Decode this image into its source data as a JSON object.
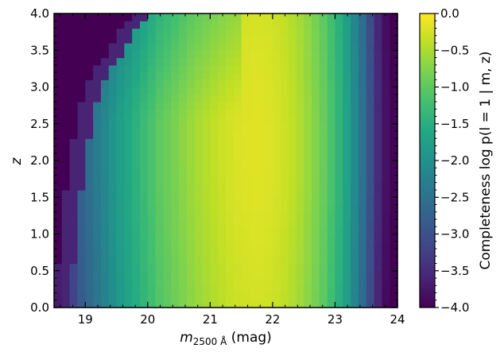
{
  "chart_data": {
    "type": "heatmap",
    "xlabel": "m",
    "xlabel_sub": "2500 Å",
    "xlabel_suffix": " (mag)",
    "ylabel": "z",
    "xlim": [
      18.5,
      24.0
    ],
    "ylim": [
      0.0,
      4.0
    ],
    "x_ticks": [
      19,
      20,
      21,
      22,
      23,
      24
    ],
    "y_ticks": [
      0.0,
      0.5,
      1.0,
      1.5,
      2.0,
      2.5,
      3.0,
      3.5,
      4.0
    ],
    "x_bin_width": 0.125,
    "y_bin_width": 0.1,
    "colormap": "viridis",
    "colorbar": {
      "label": "Completeness log p(l = 1 | m, z)",
      "range": [
        -4.0,
        0.0
      ],
      "ticks": [
        0.0,
        -0.5,
        -1.0,
        -1.5,
        -2.0,
        -2.5,
        -3.0,
        -3.5,
        -4.0
      ]
    },
    "value_profile": {
      "m_columns": [
        18.5625,
        18.6875,
        18.8125,
        18.9375,
        19.0625,
        19.1875,
        19.3125,
        19.4375,
        19.5625,
        19.6875,
        19.8125,
        19.9375,
        20.0625,
        20.1875,
        20.3125,
        20.4375,
        20.5625,
        20.6875,
        20.8125,
        20.9375,
        21.0625,
        21.1875,
        21.3125,
        21.4375,
        21.5625,
        21.6875,
        21.8125,
        21.9375,
        22.0625,
        22.1875,
        22.3125,
        22.4375,
        22.5625,
        22.6875,
        22.8125,
        22.9375,
        23.0625,
        23.1875,
        23.3125,
        23.4375,
        23.5625,
        23.6875,
        23.8125,
        23.9375
      ],
      "log_completeness_at_z_2": [
        -3.6,
        -3.4,
        -3.1,
        -2.75,
        -2.55,
        -2.35,
        -2.15,
        -1.95,
        -1.75,
        -1.6,
        -1.45,
        -1.3,
        -1.15,
        -1.0,
        -0.9,
        -0.8,
        -0.7,
        -0.6,
        -0.52,
        -0.45,
        -0.38,
        -0.32,
        -0.26,
        -0.22,
        -0.2,
        -0.18,
        -0.18,
        -0.2,
        -0.24,
        -0.3,
        -0.38,
        -0.48,
        -0.6,
        -0.75,
        -0.92,
        -1.15,
        -1.4,
        -1.7,
        -2.1,
        -2.5,
        -3.0,
        -3.5,
        -3.8,
        -3.95
      ],
      "low_m_cutoff": {
        "z": [
          0.0,
          1.0,
          2.0,
          3.0,
          3.5,
          4.0
        ],
        "m": [
          18.5,
          18.6,
          18.75,
          19.0,
          19.35,
          19.75
        ]
      }
    }
  }
}
